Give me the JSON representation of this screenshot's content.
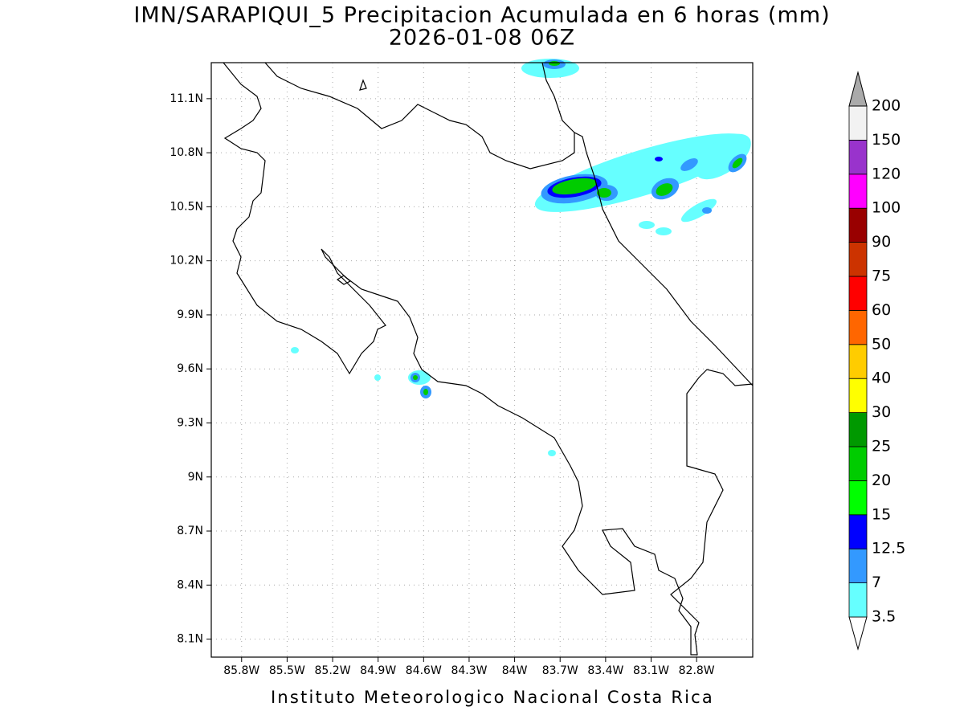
{
  "title": "IMN/SARAPIQUI_5 Precipitacion Acumulada en 6 horas (mm)",
  "subtitle": "2026-01-08 06Z",
  "map": {
    "xlim": [
      -86.0,
      -82.43
    ],
    "ylim": [
      8.0,
      11.3
    ],
    "xticks": [
      {
        "value": -85.8,
        "label": "85.8W"
      },
      {
        "value": -85.5,
        "label": "85.5W"
      },
      {
        "value": -85.2,
        "label": "85.2W"
      },
      {
        "value": -84.9,
        "label": "84.9W"
      },
      {
        "value": -84.6,
        "label": "84.6W"
      },
      {
        "value": -84.3,
        "label": "84.3W"
      },
      {
        "value": -84.0,
        "label": "84W"
      },
      {
        "value": -83.7,
        "label": "83.7W"
      },
      {
        "value": -83.4,
        "label": "83.4W"
      },
      {
        "value": -83.1,
        "label": "83.1W"
      },
      {
        "value": -82.8,
        "label": "82.8W"
      }
    ],
    "yticks": [
      {
        "value": 11.1,
        "label": "11.1N"
      },
      {
        "value": 10.8,
        "label": "10.8N"
      },
      {
        "value": 10.5,
        "label": "10.5N"
      },
      {
        "value": 10.2,
        "label": "10.2N"
      },
      {
        "value": 9.9,
        "label": "9.9N"
      },
      {
        "value": 9.6,
        "label": "9.6N"
      },
      {
        "value": 9.3,
        "label": "9.3N"
      },
      {
        "value": 9.0,
        "label": "9N"
      },
      {
        "value": 8.7,
        "label": "8.7N"
      },
      {
        "value": 8.4,
        "label": "8.4N"
      },
      {
        "value": 8.1,
        "label": "8.1N"
      }
    ],
    "grid": true
  },
  "colorbar": {
    "levels": [
      3.5,
      7,
      12.5,
      15,
      20,
      25,
      30,
      40,
      50,
      60,
      75,
      90,
      100,
      120,
      150,
      200
    ],
    "colors": [
      "#ffffff",
      "#66ffff",
      "#3399ff",
      "#0000ff",
      "#00ff00",
      "#00cc00",
      "#009900",
      "#ffff00",
      "#ffcc00",
      "#ff6600",
      "#ff0000",
      "#cc3300",
      "#990000",
      "#ff00ff",
      "#9933cc",
      "#f2f2f2",
      "#aaaaaa"
    ]
  },
  "footer": "Instituto Meteorologico Nacional Costa Rica"
}
